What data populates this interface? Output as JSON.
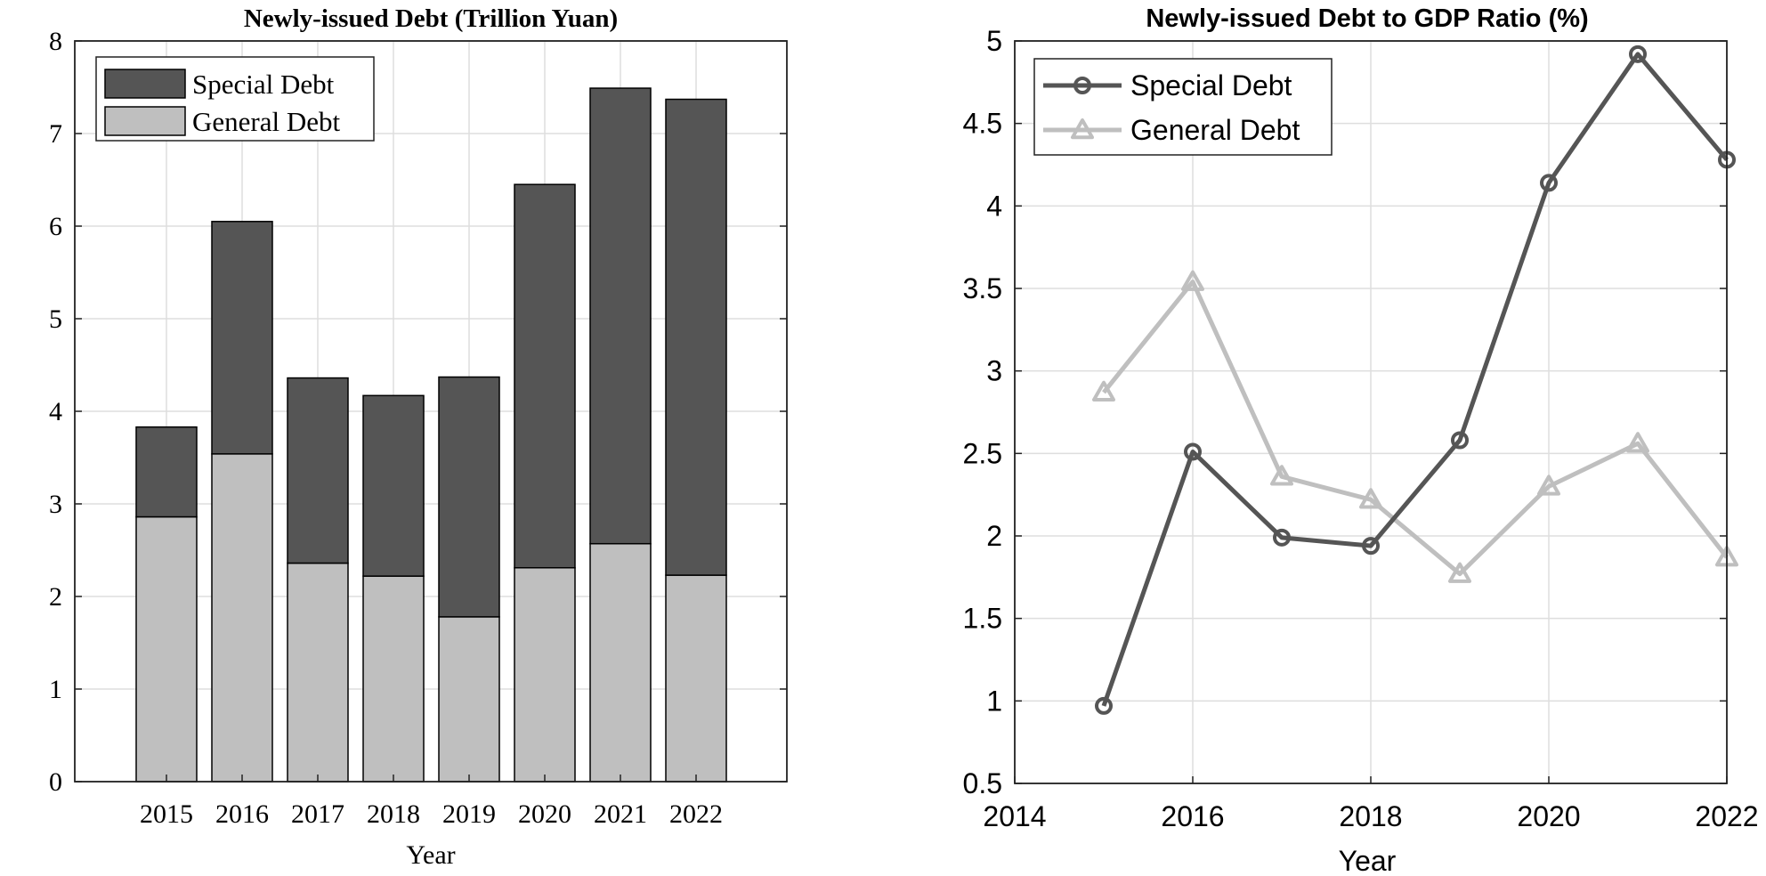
{
  "chart_data": [
    {
      "type": "bar",
      "stacked": true,
      "title": "Newly-issued Debt (Trillion Yuan)",
      "xlabel": "Year",
      "ylabel": "",
      "ylim": [
        0,
        8
      ],
      "yticks": [
        "0",
        "1",
        "2",
        "3",
        "4",
        "5",
        "6",
        "7",
        "8"
      ],
      "categories": [
        "2015",
        "2016",
        "2017",
        "2018",
        "2019",
        "2020",
        "2021",
        "2022"
      ],
      "grid": true,
      "legend_position": "top-left",
      "series": [
        {
          "name": "General Debt",
          "color": "#bfbfbf",
          "values": [
            2.86,
            3.54,
            2.36,
            2.22,
            1.78,
            2.31,
            2.57,
            2.23
          ]
        },
        {
          "name": "Special Debt",
          "color": "#555555",
          "values": [
            0.97,
            2.51,
            2.0,
            1.95,
            2.59,
            4.14,
            4.92,
            5.14
          ]
        }
      ],
      "legend_order": [
        "Special Debt",
        "General Debt"
      ]
    },
    {
      "type": "line",
      "title": "Newly-issued Debt to GDP Ratio (%)",
      "xlabel": "Year",
      "ylabel": "",
      "xlim": [
        2014,
        2022
      ],
      "ylim": [
        0.5,
        5
      ],
      "xticks": [
        "2014",
        "2016",
        "2018",
        "2020",
        "2022"
      ],
      "yticks": [
        "0.5",
        "1",
        "1.5",
        "2",
        "2.5",
        "3",
        "3.5",
        "4",
        "4.5",
        "5"
      ],
      "grid": true,
      "legend_position": "top-left",
      "x": [
        2015,
        2016,
        2017,
        2018,
        2019,
        2020,
        2021,
        2022
      ],
      "series": [
        {
          "name": "Special Debt",
          "color": "#555555",
          "marker": "circle",
          "values": [
            0.97,
            2.51,
            1.99,
            1.94,
            2.58,
            4.14,
            4.92,
            4.28
          ]
        },
        {
          "name": "General Debt",
          "color": "#bfbfbf",
          "marker": "triangle",
          "values": [
            2.87,
            3.54,
            2.36,
            2.22,
            1.77,
            2.3,
            2.56,
            1.87
          ]
        }
      ]
    }
  ]
}
